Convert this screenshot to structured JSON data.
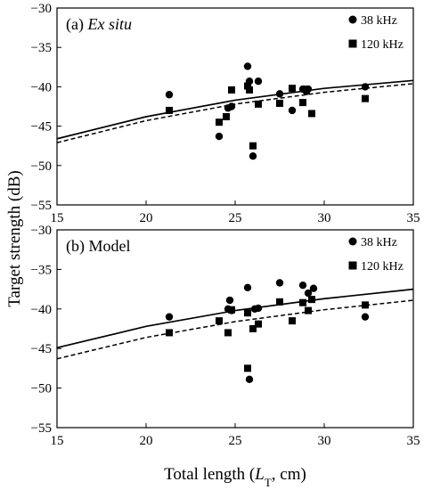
{
  "figure": {
    "ylabel": "Target strength (dB)",
    "xlabel_prefix": "Total length (",
    "xlabel_var": "L",
    "xlabel_sub": "T",
    "xlabel_suffix": ", cm)"
  },
  "chart_data": [
    {
      "type": "scatter",
      "panel_label_prefix": "(a) ",
      "panel_label_main": "Ex situ",
      "panel_label_italic": true,
      "xlim": [
        15,
        35
      ],
      "ylim": [
        -55,
        -30
      ],
      "xticks": [
        15,
        20,
        25,
        30,
        35
      ],
      "yticks": [
        -30,
        -35,
        -40,
        -45,
        -50,
        -55
      ],
      "grid": false,
      "legend_position": "top-right",
      "series": [
        {
          "name": "38 kHz",
          "marker": "circle",
          "line_style": "solid",
          "points": [
            [
              21.3,
              -41.0
            ],
            [
              24.1,
              -46.3
            ],
            [
              24.6,
              -42.7
            ],
            [
              24.8,
              -42.5
            ],
            [
              25.7,
              -37.4
            ],
            [
              25.8,
              -39.3
            ],
            [
              26.0,
              -48.8
            ],
            [
              26.3,
              -39.3
            ],
            [
              27.5,
              -40.9
            ],
            [
              28.2,
              -43.0
            ],
            [
              28.8,
              -40.3
            ],
            [
              29.0,
              -40.6
            ],
            [
              29.1,
              -40.3
            ],
            [
              32.3,
              -40.0
            ]
          ],
          "fit_line": [
            [
              15,
              -46.6
            ],
            [
              20,
              -43.8
            ],
            [
              25,
              -41.7
            ],
            [
              30,
              -40.2
            ],
            [
              35,
              -39.2
            ]
          ]
        },
        {
          "name": "120 kHz",
          "marker": "square",
          "line_style": "dashed",
          "points": [
            [
              21.3,
              -43.0
            ],
            [
              24.1,
              -44.5
            ],
            [
              24.5,
              -43.8
            ],
            [
              24.8,
              -40.4
            ],
            [
              25.7,
              -39.9
            ],
            [
              25.8,
              -40.4
            ],
            [
              26.0,
              -47.5
            ],
            [
              26.3,
              -42.2
            ],
            [
              27.5,
              -42.1
            ],
            [
              28.2,
              -40.2
            ],
            [
              28.8,
              -42.0
            ],
            [
              29.0,
              -40.3
            ],
            [
              29.3,
              -43.4
            ],
            [
              32.3,
              -41.5
            ]
          ],
          "fit_line": [
            [
              15,
              -47.1
            ],
            [
              20,
              -44.3
            ],
            [
              25,
              -42.2
            ],
            [
              30,
              -40.7
            ],
            [
              35,
              -39.6
            ]
          ]
        }
      ]
    },
    {
      "type": "scatter",
      "panel_label_prefix": "(b) ",
      "panel_label_main": "Model",
      "panel_label_italic": false,
      "xlim": [
        15,
        35
      ],
      "ylim": [
        -55,
        -30
      ],
      "xticks": [
        15,
        20,
        25,
        30,
        35
      ],
      "yticks": [
        -30,
        -35,
        -40,
        -45,
        -50,
        -55
      ],
      "grid": false,
      "legend_position": "top-right",
      "series": [
        {
          "name": "38 kHz",
          "marker": "circle",
          "line_style": "solid",
          "points": [
            [
              21.3,
              -41.0
            ],
            [
              24.6,
              -40.0
            ],
            [
              24.7,
              -38.9
            ],
            [
              24.8,
              -40.2
            ],
            [
              25.7,
              -37.3
            ],
            [
              25.8,
              -48.9
            ],
            [
              26.1,
              -40.0
            ],
            [
              26.3,
              -39.9
            ],
            [
              27.5,
              -36.7
            ],
            [
              28.8,
              -37.0
            ],
            [
              29.1,
              -38.0
            ],
            [
              29.4,
              -37.4
            ],
            [
              32.3,
              -41.0
            ]
          ],
          "fit_line": [
            [
              15,
              -44.9
            ],
            [
              20,
              -42.2
            ],
            [
              25,
              -40.2
            ],
            [
              30,
              -38.7
            ],
            [
              35,
              -37.5
            ]
          ]
        },
        {
          "name": "120 kHz",
          "marker": "square",
          "line_style": "dashed",
          "points": [
            [
              21.3,
              -43.0
            ],
            [
              24.1,
              -41.5
            ],
            [
              24.6,
              -43.0
            ],
            [
              24.8,
              -40.1
            ],
            [
              25.7,
              -40.5
            ],
            [
              25.7,
              -47.5
            ],
            [
              26.0,
              -42.5
            ],
            [
              26.3,
              -41.9
            ],
            [
              27.5,
              -39.1
            ],
            [
              28.2,
              -41.5
            ],
            [
              28.8,
              -39.2
            ],
            [
              29.1,
              -40.2
            ],
            [
              29.3,
              -38.8
            ],
            [
              32.3,
              -39.5
            ]
          ],
          "fit_line": [
            [
              15,
              -46.3
            ],
            [
              20,
              -43.6
            ],
            [
              25,
              -41.6
            ],
            [
              30,
              -40.1
            ],
            [
              35,
              -38.9
            ]
          ]
        }
      ]
    }
  ]
}
